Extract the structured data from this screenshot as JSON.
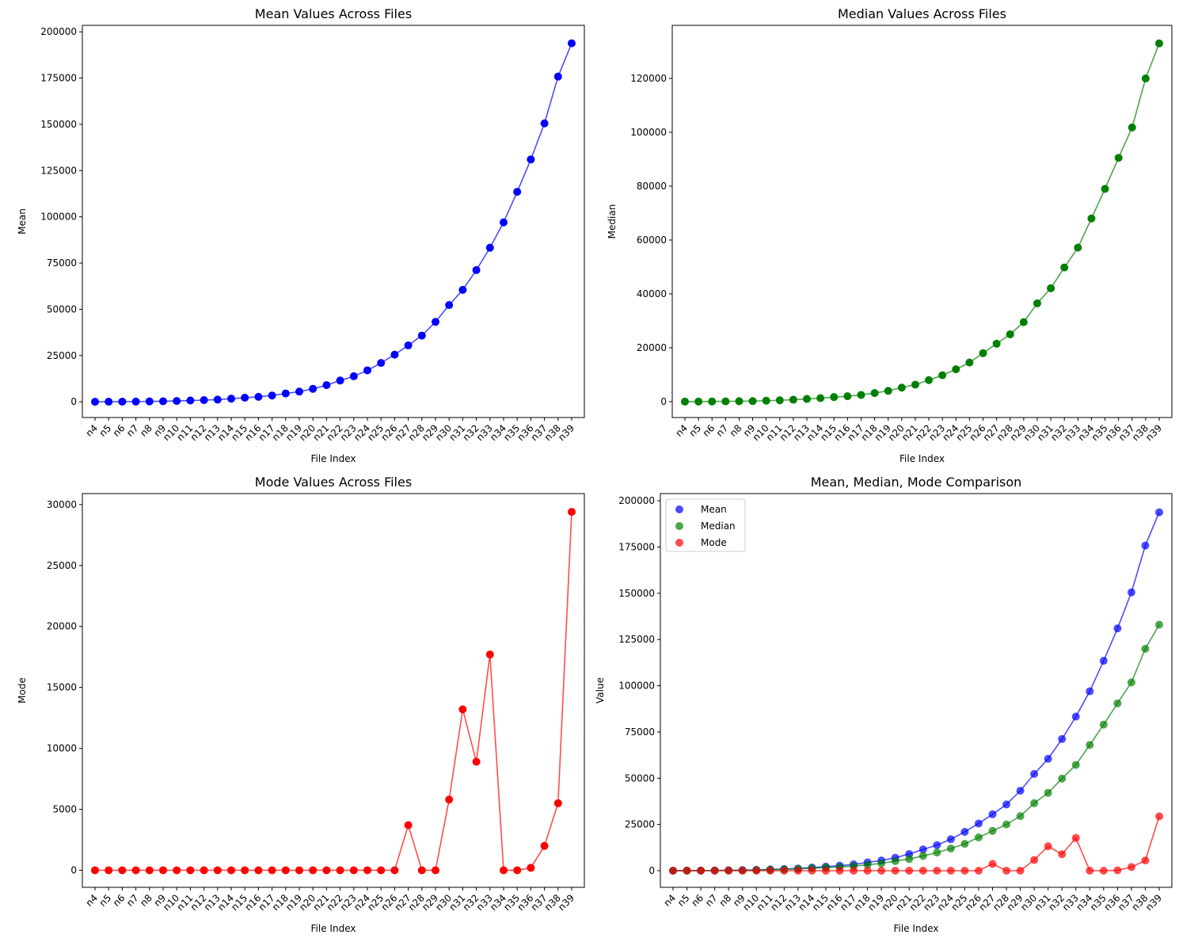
{
  "chart_data": [
    {
      "type": "line",
      "title": "Mean Values Across Files",
      "xlabel": "File Index",
      "ylabel": "Mean",
      "categories": [
        "n4",
        "n5",
        "n6",
        "n7",
        "n8",
        "n9",
        "n10",
        "n11",
        "n12",
        "n13",
        "n14",
        "n15",
        "n16",
        "n17",
        "n18",
        "n19",
        "n20",
        "n21",
        "n22",
        "n23",
        "n24",
        "n25",
        "n26",
        "n27",
        "n28",
        "n29",
        "n30",
        "n31",
        "n32",
        "n33",
        "n34",
        "n35",
        "n36",
        "n37",
        "n38",
        "n39"
      ],
      "values": [
        20,
        40,
        80,
        120,
        200,
        300,
        450,
        700,
        900,
        1200,
        1700,
        2200,
        2700,
        3400,
        4500,
        5500,
        7000,
        9000,
        11500,
        13800,
        17000,
        21000,
        25500,
        30500,
        35800,
        43200,
        52300,
        60500,
        71200,
        83300,
        97000,
        113500,
        131000,
        150500,
        175800,
        193800
      ],
      "color": "#0000ff",
      "ylim": [
        -8500,
        203500
      ],
      "yticks": [
        0,
        25000,
        50000,
        75000,
        100000,
        125000,
        150000,
        175000,
        200000
      ]
    },
    {
      "type": "line",
      "title": "Median Values Across Files",
      "xlabel": "File Index",
      "ylabel": "Median",
      "categories": [
        "n4",
        "n5",
        "n6",
        "n7",
        "n8",
        "n9",
        "n10",
        "n11",
        "n12",
        "n13",
        "n14",
        "n15",
        "n16",
        "n17",
        "n18",
        "n19",
        "n20",
        "n21",
        "n22",
        "n23",
        "n24",
        "n25",
        "n26",
        "n27",
        "n28",
        "n29",
        "n30",
        "n31",
        "n32",
        "n33",
        "n34",
        "n35",
        "n36",
        "n37",
        "n38",
        "n39"
      ],
      "values": [
        10,
        30,
        60,
        100,
        150,
        200,
        350,
        500,
        700,
        1000,
        1300,
        1700,
        2000,
        2500,
        3200,
        4000,
        5200,
        6300,
        8000,
        9800,
        12000,
        14500,
        18000,
        21500,
        25000,
        29500,
        36500,
        42100,
        49800,
        57200,
        68000,
        79000,
        90500,
        101800,
        120000,
        133000
      ],
      "color": "#008000",
      "ylim": [
        -5900,
        139700
      ],
      "yticks": [
        0,
        20000,
        40000,
        60000,
        80000,
        100000,
        120000
      ]
    },
    {
      "type": "line",
      "title": "Mode Values Across Files",
      "xlabel": "File Index",
      "ylabel": "Mode",
      "categories": [
        "n4",
        "n5",
        "n6",
        "n7",
        "n8",
        "n9",
        "n10",
        "n11",
        "n12",
        "n13",
        "n14",
        "n15",
        "n16",
        "n17",
        "n18",
        "n19",
        "n20",
        "n21",
        "n22",
        "n23",
        "n24",
        "n25",
        "n26",
        "n27",
        "n28",
        "n29",
        "n30",
        "n31",
        "n32",
        "n33",
        "n34",
        "n35",
        "n36",
        "n37",
        "n38",
        "n39"
      ],
      "values": [
        0,
        0,
        0,
        0,
        0,
        0,
        0,
        0,
        0,
        0,
        0,
        0,
        0,
        0,
        0,
        0,
        0,
        0,
        0,
        0,
        0,
        0,
        0,
        3700,
        0,
        0,
        5800,
        13200,
        8900,
        17700,
        0,
        0,
        200,
        2000,
        5500,
        29400
      ],
      "color": "#ff0000",
      "ylim": [
        -1400,
        30900
      ],
      "yticks": [
        0,
        5000,
        10000,
        15000,
        20000,
        25000,
        30000
      ]
    },
    {
      "type": "line",
      "title": "Mean, Median, Mode Comparison",
      "xlabel": "File Index",
      "ylabel": "Value",
      "legend": "upper left",
      "categories": [
        "n4",
        "n5",
        "n6",
        "n7",
        "n8",
        "n9",
        "n10",
        "n11",
        "n12",
        "n13",
        "n14",
        "n15",
        "n16",
        "n17",
        "n18",
        "n19",
        "n20",
        "n21",
        "n22",
        "n23",
        "n24",
        "n25",
        "n26",
        "n27",
        "n28",
        "n29",
        "n30",
        "n31",
        "n32",
        "n33",
        "n34",
        "n35",
        "n36",
        "n37",
        "n38",
        "n39"
      ],
      "series": [
        {
          "name": "Mean",
          "color": "#0000ff",
          "values": [
            20,
            40,
            80,
            120,
            200,
            300,
            450,
            700,
            900,
            1200,
            1700,
            2200,
            2700,
            3400,
            4500,
            5500,
            7000,
            9000,
            11500,
            13800,
            17000,
            21000,
            25500,
            30500,
            35800,
            43200,
            52300,
            60500,
            71200,
            83300,
            97000,
            113500,
            131000,
            150500,
            175800,
            193800
          ]
        },
        {
          "name": "Median",
          "color": "#008000",
          "values": [
            10,
            30,
            60,
            100,
            150,
            200,
            350,
            500,
            700,
            1000,
            1300,
            1700,
            2000,
            2500,
            3200,
            4000,
            5200,
            6300,
            8000,
            9800,
            12000,
            14500,
            18000,
            21500,
            25000,
            29500,
            36500,
            42100,
            49800,
            57200,
            68000,
            79000,
            90500,
            101800,
            120000,
            133000
          ]
        },
        {
          "name": "Mode",
          "color": "#ff0000",
          "values": [
            0,
            0,
            0,
            0,
            0,
            0,
            0,
            0,
            0,
            0,
            0,
            0,
            0,
            0,
            0,
            0,
            0,
            0,
            0,
            0,
            0,
            0,
            0,
            3700,
            0,
            0,
            5800,
            13200,
            8900,
            17700,
            0,
            0,
            200,
            2000,
            5500,
            29400
          ]
        }
      ],
      "ylim": [
        -9000,
        203900
      ],
      "yticks": [
        0,
        25000,
        50000,
        75000,
        100000,
        125000,
        150000,
        175000,
        200000
      ]
    }
  ]
}
